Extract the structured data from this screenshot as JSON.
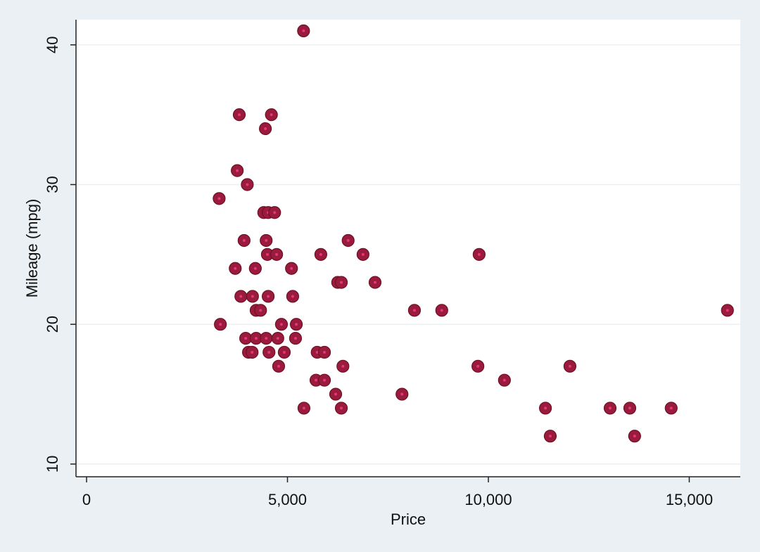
{
  "chart_data": {
    "type": "scatter",
    "x_label": "Price",
    "y_label": "Mileage (mpg)",
    "series": [
      {
        "name": "Mileage (mpg)",
        "color": "#9b1b3c",
        "x": [
          5400,
          3800,
          4600,
          4450,
          3750,
          4000,
          3300,
          4410,
          4520,
          4680,
          3920,
          4470,
          6510,
          4500,
          4730,
          5830,
          6880,
          9770,
          3700,
          4200,
          5100,
          3840,
          4130,
          4520,
          5130,
          4220,
          4330,
          8160,
          8840,
          15950,
          6250,
          6340,
          7180,
          3330,
          4850,
          5220,
          3960,
          4220,
          4470,
          4760,
          5200,
          4030,
          4120,
          4540,
          4920,
          5740,
          5920,
          4780,
          6380,
          9740,
          12030,
          5710,
          5920,
          10400,
          6200,
          7850,
          5410,
          6340,
          11420,
          13030,
          13520,
          14550,
          11540,
          13640
        ],
        "values": [
          41,
          35,
          35,
          34,
          31,
          30,
          29,
          28,
          28,
          28,
          26,
          26,
          26,
          25,
          25,
          25,
          25,
          25,
          24,
          24,
          24,
          22,
          22,
          22,
          22,
          21,
          21,
          21,
          21,
          21,
          23,
          23,
          23,
          20,
          20,
          20,
          19,
          19,
          19,
          19,
          19,
          18,
          18,
          18,
          18,
          18,
          18,
          17,
          17,
          17,
          17,
          16,
          16,
          16,
          15,
          15,
          14,
          14,
          14,
          14,
          14,
          14,
          12,
          12
        ]
      }
    ],
    "xlim": [
      -263,
      16270
    ],
    "ylim": [
      9.09,
      41.8
    ],
    "xticks": [
      0,
      {
        "value": 5000,
        "label": "5,000"
      },
      {
        "value": 10000,
        "label": "10,000"
      },
      {
        "value": 15000,
        "label": "15,000"
      }
    ],
    "yticks": [
      10,
      20,
      30,
      40
    ],
    "grid": true
  }
}
